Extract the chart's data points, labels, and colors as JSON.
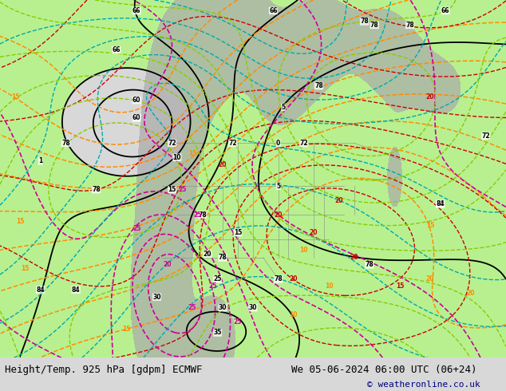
{
  "title_left": "Height/Temp. 925 hPa [gdpm] ECMWF",
  "title_right": "We 05-06-2024 06:00 UTC (06+24)",
  "copyright": "© weatheronline.co.uk",
  "figsize": [
    6.34,
    4.9
  ],
  "dpi": 100,
  "bg_color": "#d8d8d8",
  "map_bg_color": "#f2f2f2",
  "green_color": "#b8f090",
  "gray_topo_color": "#aaaaaa",
  "title_fontsize": 9,
  "copyright_fontsize": 8,
  "title_color": "#000000",
  "copyright_color": "#000080"
}
